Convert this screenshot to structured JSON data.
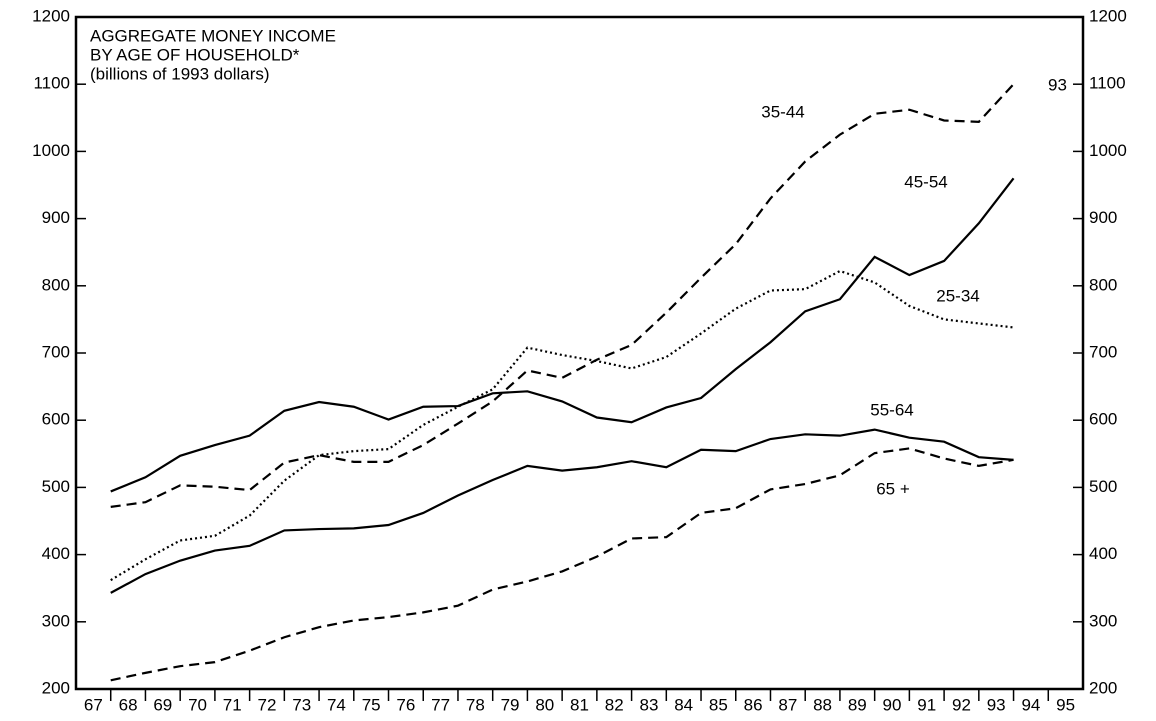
{
  "chart_data": {
    "type": "line",
    "title": [
      "AGGREGATE MONEY INCOME",
      "BY AGE OF HOUSEHOLD*",
      "(billions of 1993 dollars)"
    ],
    "categories": [
      "67",
      "68",
      "69",
      "70",
      "71",
      "72",
      "73",
      "74",
      "75",
      "76",
      "77",
      "78",
      "79",
      "80",
      "81",
      "82",
      "83",
      "84",
      "85",
      "86",
      "87",
      "88",
      "89",
      "90",
      "91",
      "92",
      "93",
      "94",
      "95"
    ],
    "x": [
      67,
      68,
      69,
      70,
      71,
      72,
      73,
      74,
      75,
      76,
      77,
      78,
      79,
      80,
      81,
      82,
      83,
      84,
      85,
      86,
      87,
      88,
      89,
      90,
      91,
      92,
      93
    ],
    "xlim": [
      66,
      95
    ],
    "xticks": [
      67,
      68,
      69,
      70,
      71,
      72,
      73,
      74,
      75,
      76,
      77,
      78,
      79,
      80,
      81,
      82,
      83,
      84,
      85,
      86,
      87,
      88,
      89,
      90,
      91,
      92,
      93,
      94
    ],
    "ylim": [
      200,
      1200
    ],
    "yticks": [
      200,
      300,
      400,
      500,
      600,
      700,
      800,
      900,
      1000,
      1100,
      1200
    ],
    "annotations": [
      "93"
    ],
    "series": [
      {
        "name": "35-44",
        "color": "#000000",
        "dash": "dashed",
        "values": [
          471,
          478,
          503,
          501,
          496,
          537,
          548,
          538,
          538,
          563,
          595,
          628,
          674,
          663,
          690,
          712,
          760,
          812,
          862,
          930,
          985,
          1025,
          1056,
          1062,
          1046,
          1044,
          1100
        ]
      },
      {
        "name": "45-54",
        "color": "#000000",
        "dash": "solid",
        "values": [
          494,
          515,
          547,
          563,
          577,
          614,
          627,
          620,
          601,
          620,
          621,
          640,
          643,
          628,
          604,
          597,
          619,
          633,
          676,
          716,
          762,
          780,
          843,
          816,
          837,
          893,
          960
        ]
      },
      {
        "name": "25-34",
        "color": "#000000",
        "dash": "dotted",
        "values": [
          362,
          393,
          421,
          428,
          458,
          510,
          548,
          554,
          557,
          593,
          620,
          646,
          708,
          697,
          688,
          677,
          694,
          729,
          766,
          793,
          795,
          822,
          805,
          770,
          750,
          744,
          738
        ]
      },
      {
        "name": "55-64",
        "color": "#000000",
        "dash": "solid",
        "values": [
          343,
          371,
          391,
          406,
          413,
          436,
          438,
          439,
          444,
          462,
          488,
          511,
          532,
          525,
          530,
          539,
          530,
          556,
          554,
          572,
          579,
          577,
          586,
          574,
          568,
          545,
          541
        ]
      },
      {
        "name": "65 +",
        "color": "#000000",
        "dash": "dashed",
        "values": [
          213,
          224,
          234,
          240,
          257,
          277,
          292,
          302,
          307,
          314,
          324,
          348,
          360,
          375,
          397,
          424,
          426,
          462,
          469,
          497,
          505,
          518,
          551,
          558,
          543,
          532,
          541
        ]
      }
    ]
  }
}
